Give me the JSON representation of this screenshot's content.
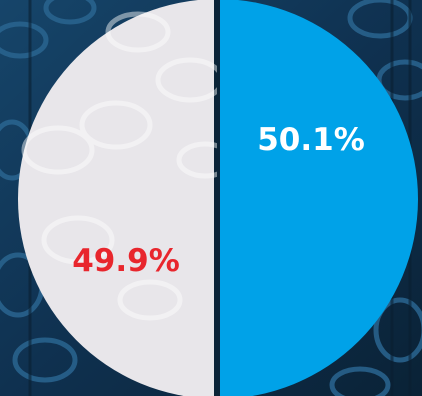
{
  "chart_data": {
    "type": "pie",
    "slices": [
      {
        "label": "50.1%",
        "value": 50.1,
        "color": "#00a2e8",
        "label_color": "#ffffff"
      },
      {
        "label": "49.9%",
        "value": 49.9,
        "color": "#e8e6ea",
        "label_color": "#e8262d"
      }
    ],
    "divider_color": "#0b2438",
    "background_color": "#0e2d45",
    "legend": "none",
    "title": ""
  }
}
